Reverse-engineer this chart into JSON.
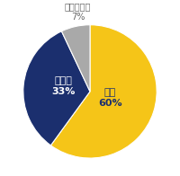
{
  "slices": [
    60,
    33,
    7
  ],
  "labels": [
    "はい",
    "いいえ",
    "わからない"
  ],
  "percentages": [
    "60%",
    "33%",
    "7%"
  ],
  "colors": [
    "#F5C518",
    "#1B2F6E",
    "#A9A9A9"
  ],
  "startangle": 90,
  "label_colors": [
    "#1B2F6E",
    "#FFFFFF",
    "#666666"
  ],
  "background_color": "#FFFFFF"
}
